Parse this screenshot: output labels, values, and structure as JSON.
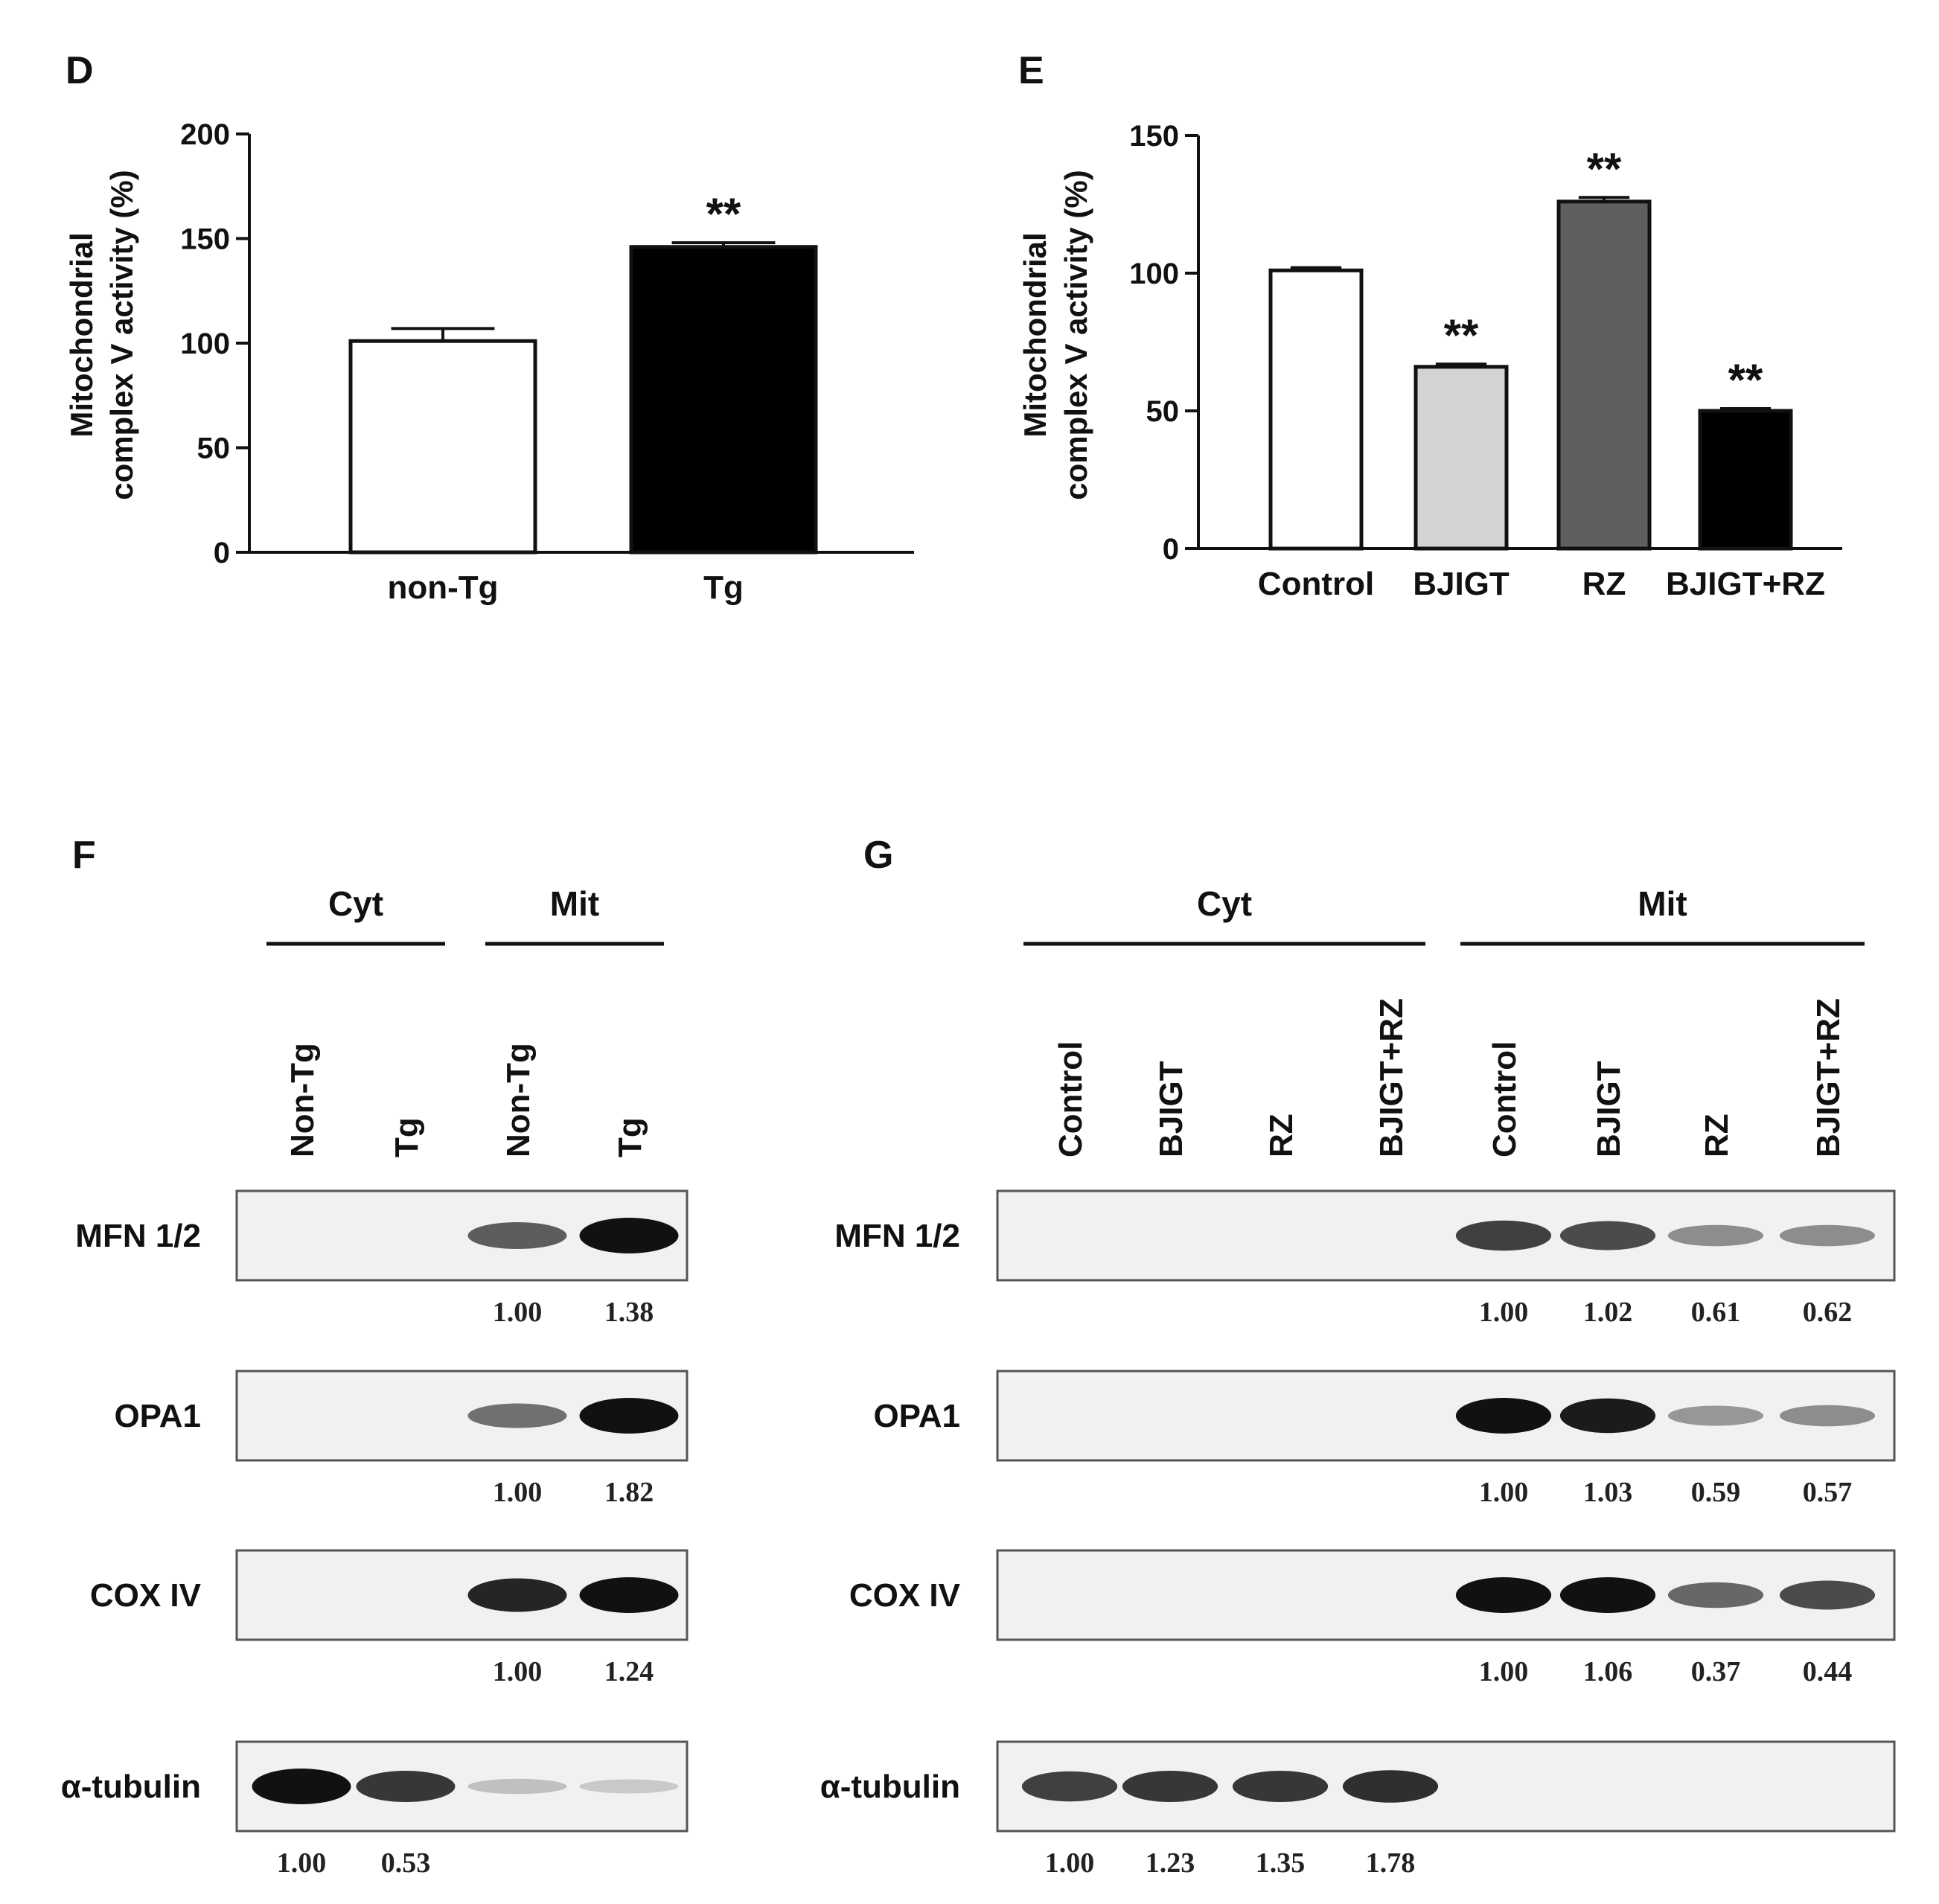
{
  "colors": {
    "white": "#ffffff",
    "light_gray": "#d3d3d3",
    "dark_gray": "#5f5f5f",
    "black": "#000000",
    "blot_bg": "#f1f1f1",
    "band": "#111111"
  },
  "chart_data": [
    {
      "panel": "D",
      "type": "bar",
      "ylabel_line1": "Mitochondrial",
      "ylabel_line2": "complex V activity (%)",
      "ylim": [
        0,
        200
      ],
      "yticks": [
        0,
        50,
        100,
        150,
        200
      ],
      "categories": [
        "non-Tg",
        "Tg"
      ],
      "values": [
        101,
        146
      ],
      "errors": [
        6,
        2
      ],
      "fills": [
        "white",
        "black"
      ],
      "significance": [
        "",
        "**"
      ]
    },
    {
      "panel": "E",
      "type": "bar",
      "ylabel_line1": "Mitochondrial",
      "ylabel_line2": "complex V activity (%)",
      "ylim": [
        0,
        150
      ],
      "yticks": [
        0,
        50,
        100,
        150
      ],
      "categories": [
        "Control",
        "BJIGT",
        "RZ",
        "BJIGT+RZ"
      ],
      "values": [
        101,
        66,
        126,
        50
      ],
      "errors": [
        1,
        1,
        1.5,
        0.8
      ],
      "fills": [
        "white",
        "light_gray",
        "dark_gray",
        "black"
      ],
      "significance": [
        "",
        "**",
        "**",
        "**"
      ]
    }
  ],
  "blots": {
    "F": {
      "panel": "F",
      "groups": [
        {
          "label": "Cyt",
          "lanes": [
            "Non-Tg",
            "Tg"
          ]
        },
        {
          "label": "Mit",
          "lanes": [
            "Non-Tg",
            "Tg"
          ]
        }
      ],
      "rows": [
        {
          "label": "MFN 1/2",
          "intensity": [
            0,
            0,
            0.6,
            1.0
          ],
          "quant": [
            "",
            "",
            "1.00",
            "1.38"
          ]
        },
        {
          "label": "OPA1",
          "intensity": [
            0,
            0,
            0.5,
            1.0
          ],
          "quant": [
            "",
            "",
            "1.00",
            "1.82"
          ]
        },
        {
          "label": "COX IV",
          "intensity": [
            0,
            0,
            0.9,
            1.0
          ],
          "quant": [
            "",
            "",
            "1.00",
            "1.24"
          ]
        },
        {
          "label": "α-tubulin",
          "intensity": [
            1.0,
            0.8,
            0.08,
            0.03
          ],
          "quant": [
            "1.00",
            "0.53",
            "",
            ""
          ]
        }
      ]
    },
    "G": {
      "panel": "G",
      "groups": [
        {
          "label": "Cyt",
          "lanes": [
            "Control",
            "BJIGT",
            "RZ",
            "BJIGT+RZ"
          ]
        },
        {
          "label": "Mit",
          "lanes": [
            "Control",
            "BJIGT",
            "RZ",
            "BJIGT+RZ"
          ]
        }
      ],
      "rows": [
        {
          "label": "MFN 1/2",
          "intensity": [
            0,
            0,
            0,
            0,
            0.75,
            0.7,
            0.35,
            0.35
          ],
          "quant": [
            "",
            "",
            "",
            "",
            "1.00",
            "1.02",
            "0.61",
            "0.62"
          ]
        },
        {
          "label": "OPA1",
          "intensity": [
            0,
            0,
            0,
            0,
            1.0,
            0.95,
            0.3,
            0.35
          ],
          "quant": [
            "",
            "",
            "",
            "",
            "1.00",
            "1.03",
            "0.59",
            "0.57"
          ]
        },
        {
          "label": "COX IV",
          "intensity": [
            0,
            0,
            0,
            0,
            1.0,
            1.0,
            0.55,
            0.7
          ],
          "quant": [
            "",
            "",
            "",
            "",
            "1.00",
            "1.06",
            "0.37",
            "0.44"
          ]
        },
        {
          "label": "α-tubulin",
          "intensity": [
            0.75,
            0.8,
            0.8,
            0.85,
            0,
            0,
            0,
            0
          ],
          "quant": [
            "1.00",
            "1.23",
            "1.35",
            "1.78",
            "",
            "",
            "",
            ""
          ]
        }
      ]
    }
  }
}
